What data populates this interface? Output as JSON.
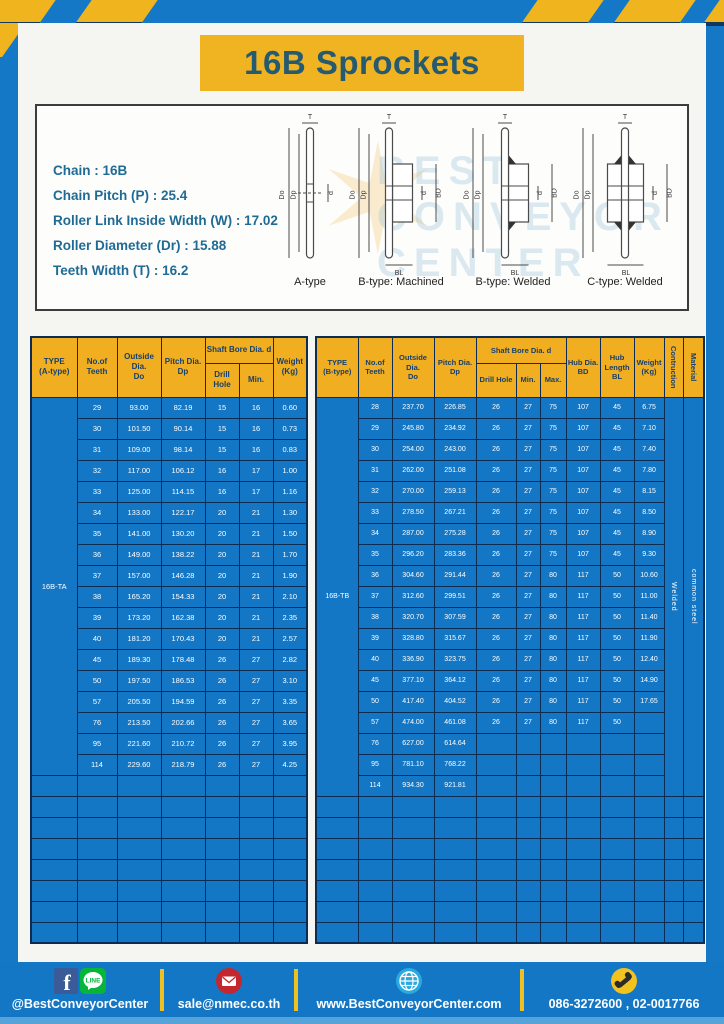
{
  "page": {
    "title": "16B Sprockets"
  },
  "specs": {
    "chain": "Chain : 16B",
    "pitch": "Chain Pitch (P) : 25.4",
    "roller_width": "Roller Link Inside Width (W) : 17.02",
    "roller_dia": "Roller Diameter (Dr) : 15.88",
    "teeth_width": "Teeth Width (T) : 16.2"
  },
  "watermark": {
    "line1": "BEST",
    "line2": "CONVEYOR",
    "line3": "CENTER",
    "star": "✶"
  },
  "diagram": {
    "captions": {
      "a": "A-type",
      "b_machined": "B-type: Machined",
      "b_welded": "B-type: Welded",
      "c_welded": "C-type: Welded"
    },
    "dims": {
      "t": "T",
      "do": "Do",
      "dp": "Dp",
      "d": "d",
      "bd": "BD",
      "bl": "BL"
    }
  },
  "tables": {
    "left": {
      "header": {
        "type": "TYPE\n(A-type)",
        "teeth": "No.of\nTeeth",
        "outside": "Outside\nDia.\nDo",
        "pitch": "Pitch Dia.\nDp",
        "shaft_group": "Shaft Bore Dia. d",
        "drill": "Drill Hole",
        "min": "Min.",
        "weight": "Weight\n(Kg)"
      },
      "type_label": "16B-TA",
      "rows": [
        [
          "29",
          "93.00",
          "82.19",
          "15",
          "16",
          "0.60"
        ],
        [
          "30",
          "101.50",
          "90.14",
          "15",
          "16",
          "0.73"
        ],
        [
          "31",
          "109.00",
          "98.14",
          "15",
          "16",
          "0.83"
        ],
        [
          "32",
          "117.00",
          "106.12",
          "16",
          "17",
          "1.00"
        ],
        [
          "33",
          "125.00",
          "114.15",
          "16",
          "17",
          "1.16"
        ],
        [
          "34",
          "133.00",
          "122.17",
          "20",
          "21",
          "1.30"
        ],
        [
          "35",
          "141.00",
          "130.20",
          "20",
          "21",
          "1.50"
        ],
        [
          "36",
          "149.00",
          "138.22",
          "20",
          "21",
          "1.70"
        ],
        [
          "37",
          "157.00",
          "146.28",
          "20",
          "21",
          "1.90"
        ],
        [
          "38",
          "165.20",
          "154.33",
          "20",
          "21",
          "2.10"
        ],
        [
          "39",
          "173.20",
          "162.38",
          "20",
          "21",
          "2.35"
        ],
        [
          "40",
          "181.20",
          "170.43",
          "20",
          "21",
          "2.57"
        ],
        [
          "45",
          "189.30",
          "178.48",
          "26",
          "27",
          "2.82"
        ],
        [
          "50",
          "197.50",
          "186.53",
          "26",
          "27",
          "3.10"
        ],
        [
          "57",
          "205.50",
          "194.59",
          "26",
          "27",
          "3.35"
        ],
        [
          "76",
          "213.50",
          "202.66",
          "26",
          "27",
          "3.65"
        ],
        [
          "95",
          "221.60",
          "210.72",
          "26",
          "27",
          "3.95"
        ],
        [
          "114",
          "229.60",
          "218.79",
          "26",
          "27",
          "4.25"
        ]
      ],
      "empty_rows": 8
    },
    "right": {
      "header": {
        "type": "TYPE\n(B-type)",
        "teeth": "No.of\nTeeth",
        "outside": "Outside\nDia.\nDo",
        "pitch": "Pitch Dia.\nDp",
        "shaft_group": "Shaft Bore Dia. d",
        "drill": "Drill Hole",
        "min": "Min.",
        "max": "Max.",
        "hub_dia": "Hub Dia.\nBD",
        "hub_len": "Hub\nLength\nBL",
        "weight": "Weight\n(Kg)",
        "construction": "Contruction",
        "material": "Material"
      },
      "type_label": "16B-TB",
      "construction_value": "Welded",
      "material_value": "common steel",
      "rows": [
        [
          "28",
          "237.70",
          "226.85",
          "26",
          "27",
          "75",
          "107",
          "45",
          "6.75"
        ],
        [
          "29",
          "245.80",
          "234.92",
          "26",
          "27",
          "75",
          "107",
          "45",
          "7.10"
        ],
        [
          "30",
          "254.00",
          "243.00",
          "26",
          "27",
          "75",
          "107",
          "45",
          "7.40"
        ],
        [
          "31",
          "262.00",
          "251.08",
          "26",
          "27",
          "75",
          "107",
          "45",
          "7.80"
        ],
        [
          "32",
          "270.00",
          "259.13",
          "26",
          "27",
          "75",
          "107",
          "45",
          "8.15"
        ],
        [
          "33",
          "278.50",
          "267.21",
          "26",
          "27",
          "75",
          "107",
          "45",
          "8.50"
        ],
        [
          "34",
          "287.00",
          "275.28",
          "26",
          "27",
          "75",
          "107",
          "45",
          "8.90"
        ],
        [
          "35",
          "296.20",
          "283.36",
          "26",
          "27",
          "75",
          "107",
          "45",
          "9.30"
        ],
        [
          "36",
          "304.60",
          "291.44",
          "26",
          "27",
          "80",
          "117",
          "50",
          "10.60"
        ],
        [
          "37",
          "312.60",
          "299.51",
          "26",
          "27",
          "80",
          "117",
          "50",
          "11.00"
        ],
        [
          "38",
          "320.70",
          "307.59",
          "26",
          "27",
          "80",
          "117",
          "50",
          "11.40"
        ],
        [
          "39",
          "328.80",
          "315.67",
          "26",
          "27",
          "80",
          "117",
          "50",
          "11.90"
        ],
        [
          "40",
          "336.90",
          "323.75",
          "26",
          "27",
          "80",
          "117",
          "50",
          "12.40"
        ],
        [
          "45",
          "377.10",
          "364.12",
          "26",
          "27",
          "80",
          "117",
          "50",
          "14.90"
        ],
        [
          "50",
          "417.40",
          "404.52",
          "26",
          "27",
          "80",
          "117",
          "50",
          "17.65"
        ],
        [
          "57",
          "474.00",
          "461.08",
          "26",
          "27",
          "80",
          "117",
          "50",
          ""
        ],
        [
          "76",
          "627.00",
          "614.64",
          "",
          "",
          "",
          "",
          "",
          ""
        ],
        [
          "95",
          "781.10",
          "768.22",
          "",
          "",
          "",
          "",
          "",
          ""
        ],
        [
          "114",
          "934.30",
          "921.81",
          "",
          "",
          "",
          "",
          "",
          ""
        ]
      ],
      "empty_rows": 7
    }
  },
  "footer": {
    "social": "@BestConveyorCenter",
    "line_label": "LINE",
    "email": "sale@nmec.co.th",
    "website": "www.BestConveyorCenter.com",
    "phone": "086-3272600 , 02-0017766"
  },
  "colors": {
    "brand_blue": "#1478c6",
    "accent_yellow": "#f0b322",
    "table_header_yellow": "#f0ae20",
    "table_line_navy": "#0d2c52",
    "title_teal": "#265a70",
    "spec_teal": "#1f6b95"
  }
}
